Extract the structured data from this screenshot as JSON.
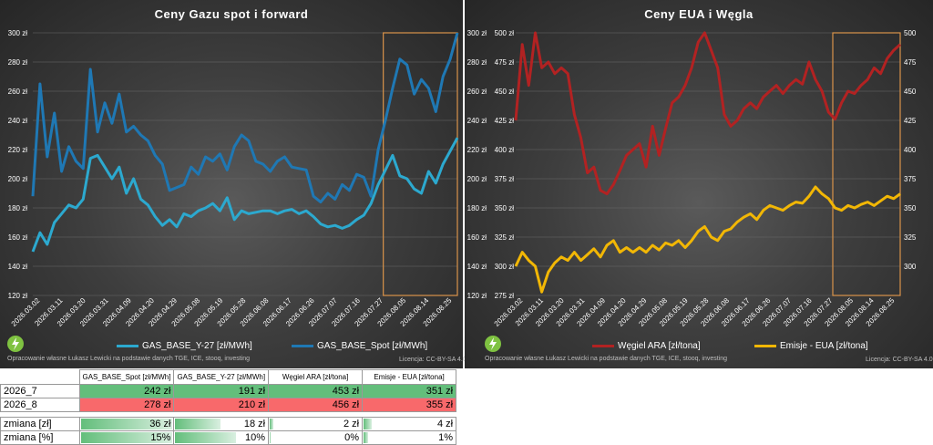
{
  "left_chart": {
    "title": "Ceny Gazu spot i forward",
    "footer": "Opracowanie własne Łukasz Lewicki na podstawie danych TGE, ICE, stooq, investing",
    "license": "Licencja: CC-BY-SA 4.0"
  },
  "right_chart": {
    "title": "Ceny EUA i Węgla",
    "footer": "Opracowanie własne Łukasz Lewicki na podstawie danych TGE, ICE, stooq, investing",
    "license": "Licencja: CC-BY-SA 4.0"
  },
  "chart_data": [
    {
      "type": "line",
      "title": "Ceny Gazu spot i forward",
      "y_ticks": [
        "120 zł",
        "140 zł",
        "160 zł",
        "180 zł",
        "200 zł",
        "220 zł",
        "240 zł",
        "260 zł",
        "280 zł",
        "300 zł"
      ],
      "ylim": [
        120,
        300
      ],
      "x_ticks": [
        "2026.03.02",
        "2026.03.11",
        "2026.03.20",
        "2026.03.31",
        "2026.04.09",
        "2026.04.20",
        "2026.04.29",
        "2026.05.08",
        "2026.05.19",
        "2026.05.28",
        "2026.06.08",
        "2026.06.17",
        "2026.06.26",
        "2026.07.07",
        "2026.07.16",
        "2026.07.27",
        "2026.08.05",
        "2026.08.14",
        "2026.08.25"
      ],
      "grid": true,
      "legend_position": "bottom",
      "highlight_range": [
        "2026.07.27",
        "2026.08.31"
      ],
      "series": [
        {
          "name": "GAS_BASE_Y-27 [zł/MWh]",
          "color": "#2ca9cf",
          "values": [
            150,
            163,
            155,
            170,
            176,
            182,
            180,
            186,
            214,
            216,
            208,
            200,
            208,
            190,
            200,
            186,
            182,
            174,
            168,
            172,
            167,
            176,
            174,
            178,
            180,
            183,
            178,
            187,
            172,
            178,
            176,
            177,
            178,
            178,
            176,
            178,
            179,
            176,
            178,
            174,
            169,
            167,
            168,
            166,
            168,
            172,
            175,
            183,
            196,
            206,
            216,
            202,
            200,
            193,
            190,
            205,
            197,
            210,
            219,
            228
          ]
        },
        {
          "name": "GAS_BASE_Spot [zł/MWh]",
          "color": "#1f78b4",
          "values": [
            188,
            265,
            215,
            245,
            205,
            222,
            212,
            207,
            275,
            232,
            252,
            238,
            258,
            232,
            236,
            230,
            226,
            216,
            210,
            192,
            194,
            196,
            208,
            203,
            215,
            212,
            217,
            206,
            222,
            230,
            226,
            212,
            210,
            205,
            212,
            215,
            208,
            207,
            206,
            188,
            184,
            190,
            186,
            196,
            192,
            203,
            201,
            188,
            220,
            240,
            262,
            282,
            278,
            258,
            268,
            262,
            246,
            270,
            282,
            300
          ]
        }
      ]
    },
    {
      "type": "line",
      "title": "Ceny EUA i Węgla",
      "y_ticks_left": [
        "120 zł",
        "140 zł",
        "160 zł",
        "180 zł",
        "200 zł",
        "220 zł",
        "240 zł",
        "260 zł",
        "280 zł",
        "300 zł"
      ],
      "y_ticks_left_inner": [
        "275 zł",
        "300 zł",
        "325 zł",
        "350 zł",
        "375 zł",
        "400 zł",
        "425 zł",
        "450 zł",
        "475 zł",
        "500 zł"
      ],
      "y_ticks_right": [
        "300",
        "325",
        "350",
        "375",
        "400",
        "425",
        "450",
        "475",
        "500"
      ],
      "ylim_left": [
        120,
        300
      ],
      "ylim_right": [
        275,
        500
      ],
      "x_ticks": [
        "2026.03.02",
        "2026.03.11",
        "2026.03.20",
        "2026.03.31",
        "2026.04.09",
        "2026.04.20",
        "2026.04.29",
        "2026.05.08",
        "2026.05.19",
        "2026.05.28",
        "2026.06.08",
        "2026.06.17",
        "2026.06.26",
        "2026.07.07",
        "2026.07.16",
        "2026.07.27",
        "2026.08.05",
        "2026.08.14",
        "2026.08.25"
      ],
      "grid": true,
      "legend_position": "bottom",
      "highlight_range": [
        "2026.07.27",
        "2026.08.31"
      ],
      "series": [
        {
          "name": "Węgiel ARA [zł/tona]",
          "color": "#b22222",
          "axis": "right",
          "values": [
            425,
            490,
            455,
            500,
            470,
            475,
            465,
            470,
            465,
            430,
            410,
            380,
            385,
            365,
            362,
            370,
            382,
            395,
            400,
            405,
            385,
            420,
            395,
            418,
            440,
            445,
            455,
            470,
            492,
            500,
            485,
            470,
            430,
            420,
            425,
            435,
            440,
            435,
            445,
            450,
            455,
            448,
            455,
            460,
            456,
            475,
            460,
            450,
            432,
            426,
            440,
            450,
            448,
            455,
            460,
            470,
            465,
            478,
            485,
            490
          ]
        },
        {
          "name": "Emisje - EUA [zł/tona]",
          "color": "#f2b705",
          "axis": "right",
          "values": [
            300,
            312,
            305,
            300,
            278,
            295,
            303,
            308,
            305,
            312,
            305,
            310,
            315,
            308,
            318,
            322,
            312,
            316,
            312,
            316,
            312,
            318,
            314,
            320,
            318,
            322,
            316,
            322,
            330,
            334,
            325,
            322,
            330,
            332,
            338,
            342,
            345,
            340,
            348,
            352,
            350,
            348,
            352,
            355,
            354,
            360,
            368,
            362,
            358,
            350,
            348,
            352,
            350,
            353,
            355,
            352,
            356,
            360,
            358,
            362
          ]
        }
      ]
    }
  ],
  "table": {
    "headers": [
      "",
      "GAS_BASE_Spot [zł/MWh]",
      "GAS_BASE_Y-27 [zł/MWh]",
      "Węgiel ARA [zł/tona]",
      "Emisje - EUA [zł/tona]"
    ],
    "rows": [
      {
        "label": "2026_7",
        "values": [
          "242 zł",
          "191 zł",
          "453 zł",
          "351 zł"
        ],
        "color": "#63be7b"
      },
      {
        "label": "2026_8",
        "values": [
          "278 zł",
          "210 zł",
          "456 zł",
          "355 zł"
        ],
        "color": "#f8696b"
      }
    ],
    "change_rows": [
      {
        "label": "zmiana [zł]",
        "values": [
          "36 zł",
          "18 zł",
          "2 zł",
          "4 zł"
        ],
        "bar_fraction": [
          1.0,
          0.5,
          0.06,
          0.11
        ]
      },
      {
        "label": "zmiana [%]",
        "values": [
          "15%",
          "10%",
          "0%",
          "1%"
        ],
        "bar_fraction": [
          1.0,
          0.67,
          0.03,
          0.07
        ]
      }
    ]
  }
}
